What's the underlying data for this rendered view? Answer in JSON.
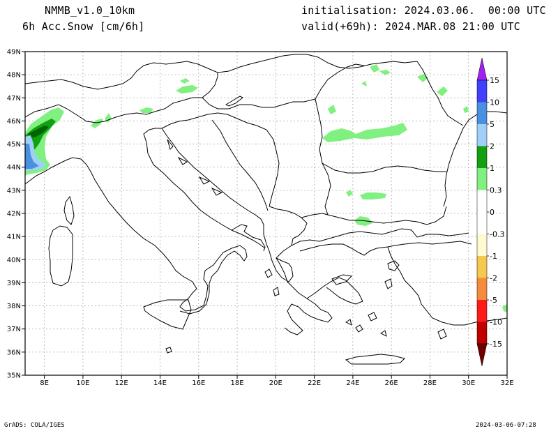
{
  "header": {
    "model": "NMMB_v1.0_10km",
    "field": "6h Acc.Snow [cm/6h]",
    "init": "initialisation: 2024.03.06.  00:00 UTC",
    "valid": "valid(+69h): 2024.MAR.08 21:00 UTC"
  },
  "footer": {
    "left": "GrADS: COLA/IGES",
    "right": "2024-03-06-07:28"
  },
  "map": {
    "lon_range": [
      7,
      32
    ],
    "lat_range": [
      35,
      49
    ],
    "lon_ticks": [
      8,
      10,
      12,
      14,
      16,
      18,
      20,
      22,
      24,
      26,
      28,
      30,
      32
    ],
    "lat_ticks": [
      35,
      36,
      37,
      38,
      39,
      40,
      41,
      42,
      43,
      44,
      45,
      46,
      47,
      48,
      49
    ],
    "lon_labels": [
      "8E",
      "10E",
      "12E",
      "14E",
      "16E",
      "18E",
      "20E",
      "22E",
      "24E",
      "26E",
      "28E",
      "30E",
      "32E"
    ],
    "lat_labels": [
      "35N",
      "36N",
      "37N",
      "38N",
      "39N",
      "40N",
      "41N",
      "42N",
      "43N",
      "44N",
      "45N",
      "46N",
      "47N",
      "48N",
      "49N"
    ]
  },
  "colorbar": {
    "labels": [
      "15",
      "10",
      "5",
      "2",
      "1",
      "0.3",
      "0",
      "-0.3",
      "-1",
      "-2",
      "-5",
      "-10",
      "-15"
    ],
    "colors": {
      "top_triangle": "#a020f0",
      "band_10_15": "#4040ff",
      "band_5_10": "#4a90e0",
      "band_2_5": "#a0d0f8",
      "band_1_2": "#12a012",
      "band_03_1": "#80f080",
      "band_0": "#ffffff",
      "band_m03_m1": "#fffad0",
      "band_m1_m2": "#f5c850",
      "band_m2_m5": "#f58c3c",
      "band_m5_m10": "#ff1a1a",
      "band_m10_m15": "#c00000",
      "bottom_triangle": "#700000"
    }
  },
  "snow_colors": {
    "light": "#80f080",
    "medium": "#12a012",
    "dark": "#006400",
    "blue_light": "#a0d0f8",
    "blue": "#4a90e0"
  }
}
